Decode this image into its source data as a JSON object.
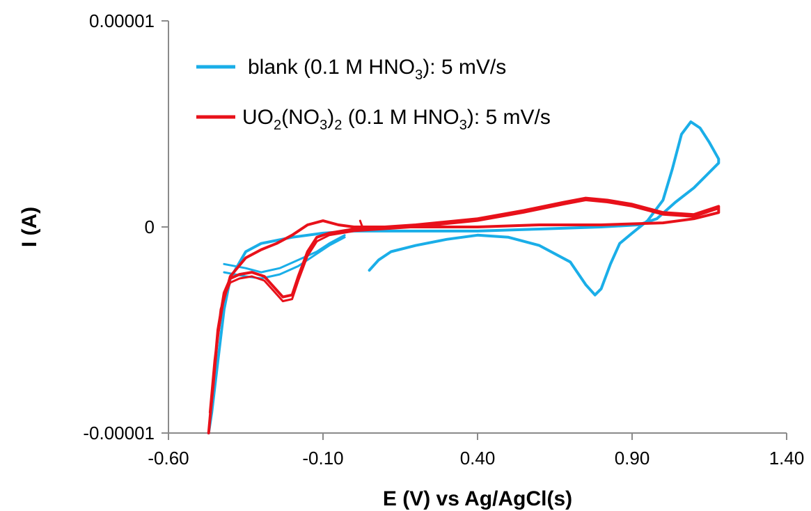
{
  "chart_data": {
    "type": "line",
    "title": "",
    "xlabel": "E (V) vs Ag/AgCl(s)",
    "ylabel": "I (A)",
    "xlim": [
      -0.6,
      1.4
    ],
    "ylim": [
      -1e-05,
      1e-05
    ],
    "x_ticks": [
      "-0.60",
      "-0.10",
      "0.40",
      "0.90",
      "1.40"
    ],
    "y_ticks": [
      "-0.00001",
      "0",
      "0.00001"
    ],
    "grid": false,
    "legend_position": "top-left",
    "series": [
      {
        "name": "blank (0.1 M HNO3): 5 mV/s",
        "name_parts": [
          {
            "t": "blank (0.1 M HNO"
          },
          {
            "t": "3",
            "sub": true
          },
          {
            "t": "): 5 mV/s"
          }
        ],
        "color": "#1AAEE8",
        "segments": [
          [
            [
              0.05,
              -2.1e-06
            ],
            [
              0.08,
              -1.6e-06
            ],
            [
              0.12,
              -1.2e-06
            ],
            [
              0.2,
              -9e-07
            ],
            [
              0.3,
              -6e-07
            ],
            [
              0.4,
              -4e-07
            ],
            [
              0.5,
              -5e-07
            ],
            [
              0.6,
              -9e-07
            ],
            [
              0.7,
              -1.7e-06
            ],
            [
              0.75,
              -2.8e-06
            ],
            [
              0.78,
              -3.3e-06
            ],
            [
              0.8,
              -3e-06
            ],
            [
              0.83,
              -1.8e-06
            ],
            [
              0.86,
              -8e-07
            ],
            [
              0.9,
              -3e-07
            ],
            [
              0.95,
              3e-07
            ],
            [
              1.0,
              1.3e-06
            ],
            [
              1.03,
              2.8e-06
            ],
            [
              1.06,
              4.5e-06
            ],
            [
              1.09,
              5.1e-06
            ],
            [
              1.12,
              4.8e-06
            ],
            [
              1.15,
              4.1e-06
            ],
            [
              1.18,
              3.3e-06
            ],
            [
              1.18,
              3.1e-06
            ],
            [
              1.14,
              2.5e-06
            ],
            [
              1.1,
              1.9e-06
            ],
            [
              1.04,
              1.2e-06
            ],
            [
              0.98,
              4e-07
            ],
            [
              0.92,
              1e-07
            ],
            [
              0.8,
              0.0
            ],
            [
              0.6,
              -1e-07
            ],
            [
              0.4,
              -2e-07
            ],
            [
              0.2,
              -2e-07
            ],
            [
              0.0,
              -2e-07
            ],
            [
              -0.1,
              -3e-07
            ],
            [
              -0.2,
              -5e-07
            ],
            [
              -0.3,
              -8e-07
            ],
            [
              -0.35,
              -1.2e-06
            ],
            [
              -0.4,
              -2.5e-06
            ],
            [
              -0.42,
              -4e-06
            ],
            [
              -0.44,
              -6.5e-06
            ],
            [
              -0.46,
              -9e-06
            ],
            [
              -0.47,
              -1e-05
            ]
          ],
          [
            [
              -0.42,
              -1.8e-06
            ],
            [
              -0.35,
              -2e-06
            ],
            [
              -0.3,
              -2.2e-06
            ],
            [
              -0.24,
              -2e-06
            ],
            [
              -0.18,
              -1.6e-06
            ],
            [
              -0.12,
              -1.2e-06
            ],
            [
              -0.08,
              -8e-07
            ],
            [
              -0.03,
              -4e-07
            ]
          ],
          [
            [
              -0.42,
              -2.2e-06
            ],
            [
              -0.35,
              -2.4e-06
            ],
            [
              -0.3,
              -2.5e-06
            ],
            [
              -0.24,
              -2.3e-06
            ],
            [
              -0.18,
              -1.9e-06
            ],
            [
              -0.13,
              -1.4e-06
            ],
            [
              -0.08,
              -9e-07
            ],
            [
              -0.03,
              -5e-07
            ]
          ]
        ]
      },
      {
        "name": "UO2(NO3)2 (0.1 M HNO3): 5 mV/s",
        "name_parts": [
          {
            "t": "UO"
          },
          {
            "t": "2",
            "sub": true
          },
          {
            "t": "(NO"
          },
          {
            "t": "3",
            "sub": true
          },
          {
            "t": ")"
          },
          {
            "t": "2",
            "sub": true
          },
          {
            "t": " (0.1 M HNO"
          },
          {
            "t": "3",
            "sub": true
          },
          {
            "t": "): 5 mV/s"
          }
        ],
        "color": "#E8111A",
        "segments": [
          [
            [
              -0.47,
              -1e-05
            ],
            [
              -0.455,
              -7.5e-06
            ],
            [
              -0.44,
              -5e-06
            ],
            [
              -0.42,
              -3.2e-06
            ],
            [
              -0.4,
              -2.5e-06
            ],
            [
              -0.37,
              -2.3e-06
            ],
            [
              -0.33,
              -2.2e-06
            ],
            [
              -0.29,
              -2.4e-06
            ],
            [
              -0.26,
              -2.9e-06
            ],
            [
              -0.23,
              -3.4e-06
            ],
            [
              -0.2,
              -3.3e-06
            ],
            [
              -0.18,
              -2.4e-06
            ],
            [
              -0.15,
              -1.2e-06
            ],
            [
              -0.12,
              -5e-07
            ],
            [
              -0.08,
              -3e-07
            ],
            [
              0.0,
              -1e-07
            ],
            [
              0.2,
              1e-07
            ],
            [
              0.4,
              4e-07
            ],
            [
              0.55,
              8e-07
            ],
            [
              0.68,
              1.2e-06
            ],
            [
              0.75,
              1.4e-06
            ],
            [
              0.82,
              1.3e-06
            ],
            [
              0.9,
              1.1e-06
            ],
            [
              1.0,
              7e-07
            ],
            [
              1.1,
              6e-07
            ],
            [
              1.18,
              1e-06
            ],
            [
              1.18,
              7e-07
            ],
            [
              1.1,
              4e-07
            ],
            [
              1.0,
              2e-07
            ],
            [
              0.8,
              1e-07
            ],
            [
              0.6,
              1e-07
            ],
            [
              0.4,
              0.0
            ],
            [
              0.2,
              0.0
            ],
            [
              0.0,
              0.0
            ],
            [
              -0.05,
              1e-07
            ],
            [
              -0.1,
              3e-07
            ],
            [
              -0.15,
              1e-07
            ],
            [
              -0.2,
              -4e-07
            ],
            [
              -0.25,
              -8e-07
            ],
            [
              -0.3,
              -1.1e-06
            ],
            [
              -0.35,
              -1.5e-06
            ],
            [
              -0.4,
              -2.4e-06
            ],
            [
              -0.43,
              -4e-06
            ],
            [
              -0.45,
              -6.5e-06
            ],
            [
              -0.465,
              -9e-06
            ]
          ],
          [
            [
              -0.47,
              -1e-05
            ],
            [
              -0.455,
              -7.8e-06
            ],
            [
              -0.44,
              -5.3e-06
            ],
            [
              -0.42,
              -3.4e-06
            ],
            [
              -0.4,
              -2.7e-06
            ],
            [
              -0.37,
              -2.5e-06
            ],
            [
              -0.33,
              -2.4e-06
            ],
            [
              -0.29,
              -2.6e-06
            ],
            [
              -0.26,
              -3.1e-06
            ],
            [
              -0.23,
              -3.6e-06
            ],
            [
              -0.2,
              -3.5e-06
            ],
            [
              -0.18,
              -2.6e-06
            ],
            [
              -0.15,
              -1.4e-06
            ],
            [
              -0.12,
              -7e-07
            ],
            [
              -0.08,
              -4e-07
            ],
            [
              0.0,
              -2e-07
            ],
            [
              0.2,
              0.0
            ],
            [
              0.4,
              3e-07
            ],
            [
              0.55,
              7e-07
            ],
            [
              0.68,
              1.1e-06
            ],
            [
              0.75,
              1.3e-06
            ],
            [
              0.82,
              1.2e-06
            ],
            [
              0.9,
              1e-06
            ],
            [
              1.0,
              6e-07
            ],
            [
              1.1,
              5e-07
            ],
            [
              1.18,
              9e-07
            ]
          ],
          [
            [
              0.02,
              3e-07
            ],
            [
              0.03,
              -1e-07
            ]
          ]
        ]
      }
    ]
  }
}
